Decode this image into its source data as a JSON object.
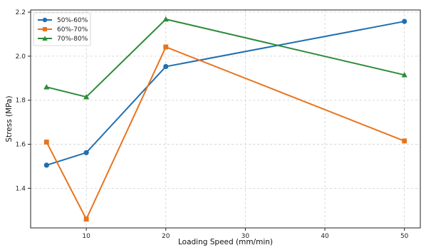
{
  "chart_data": {
    "type": "line",
    "title": "",
    "xlabel": "Loading Speed (mm/min)",
    "ylabel": "Stress (MPa)",
    "x": [
      5,
      10,
      20,
      50
    ],
    "xticks": [
      10,
      20,
      30,
      40,
      50
    ],
    "yticks": [
      "1.4",
      "1.6",
      "1.8",
      "2.0",
      "2.2"
    ],
    "xlim": [
      3.0,
      52.0
    ],
    "ylim": [
      1.22,
      2.21
    ],
    "grid": true,
    "legend_position": "upper-left",
    "series": [
      {
        "name": "50%-60%",
        "color": "#1f6fb2",
        "marker": "circle",
        "values": [
          1.505,
          1.562,
          1.953,
          2.158
        ]
      },
      {
        "name": "60%-70%",
        "color": "#e8741d",
        "marker": "square",
        "values": [
          1.61,
          1.26,
          2.042,
          1.615
        ]
      },
      {
        "name": "70%-80%",
        "color": "#2e8b3a",
        "marker": "triangle",
        "values": [
          1.86,
          1.815,
          2.168,
          1.915
        ]
      }
    ]
  }
}
